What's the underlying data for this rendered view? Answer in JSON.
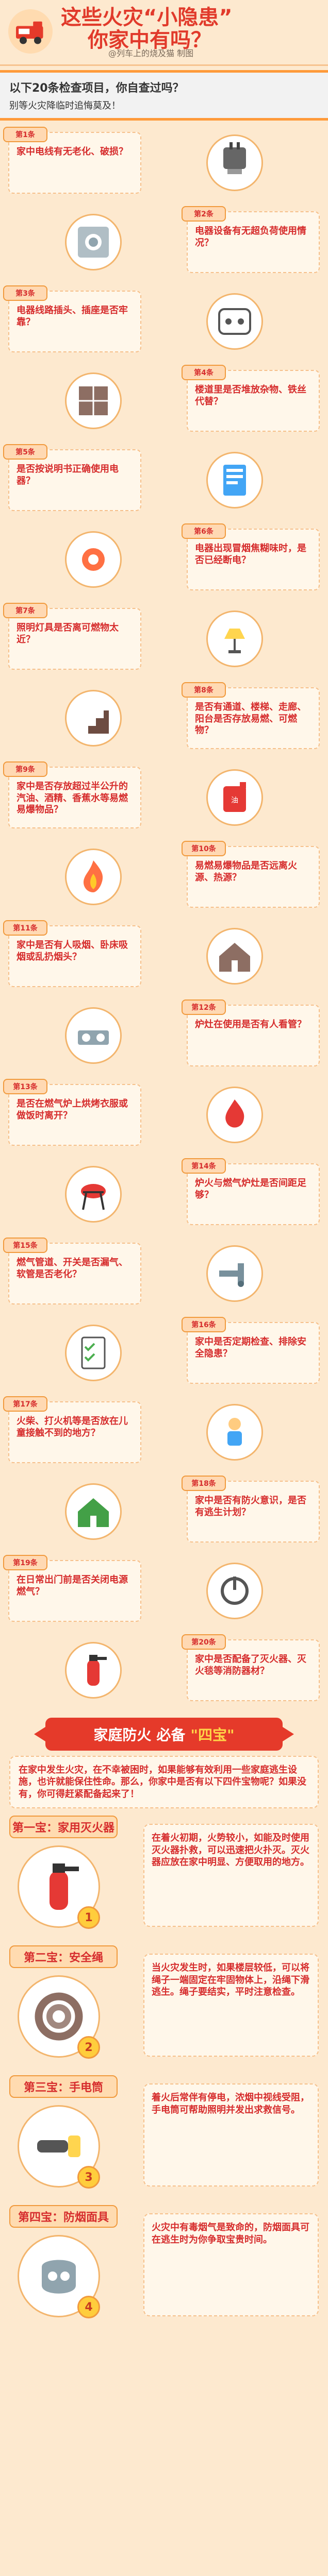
{
  "header": {
    "title_line1": "这些火灾“小隐患”",
    "title_line2": "你家中有吗？",
    "credit": "@列车上的烧及猫 制图"
  },
  "intro": {
    "line1": "以下20条检查项目，你自查过吗？",
    "line2": "别等火灾降临时追悔莫及！"
  },
  "items": [
    {
      "badge": "第1条",
      "text": "家中电线有无老化、破损？",
      "icon_name": "plug-icon"
    },
    {
      "badge": "第2条",
      "text": "电器设备有无超负荷使用情况？",
      "icon_name": "appliance-icon"
    },
    {
      "badge": "第3条",
      "text": "电器线路插头、插座是否牢靠？",
      "icon_name": "socket-icon"
    },
    {
      "badge": "第4条",
      "text": "楼道里是否堆放杂物、铁丝代替？",
      "icon_name": "storage-icon"
    },
    {
      "badge": "第5条",
      "text": "是否按说明书正确使用电器？",
      "icon_name": "manual-icon"
    },
    {
      "badge": "第6条",
      "text": "电器出现冒烟焦糊味时，是否已经断电？",
      "icon_name": "gear-icon"
    },
    {
      "badge": "第7条",
      "text": "照明灯具是否离可燃物太近？",
      "icon_name": "lamp-icon"
    },
    {
      "badge": "第8条",
      "text": "是否有通道、楼梯、走廊、阳台是否存放易燃、可燃物？",
      "icon_name": "stairs-icon"
    },
    {
      "badge": "第9条",
      "text": "家中是否存放超过半公升的汽油、酒精、香蕉水等易燃易爆物品？",
      "icon_name": "gas-can-icon"
    },
    {
      "badge": "第10条",
      "text": "易燃易爆物品是否远离火源、热源？",
      "icon_name": "flame-icon"
    },
    {
      "badge": "第11条",
      "text": "家中是否有人吸烟、卧床吸烟或乱扔烟头？",
      "icon_name": "house-icon"
    },
    {
      "badge": "第12条",
      "text": "炉灶在使用是否有人看管？",
      "icon_name": "stove-icon"
    },
    {
      "badge": "第13条",
      "text": "是否在燃气炉上烘烤衣服或做饭时离开？",
      "icon_name": "fire-icon"
    },
    {
      "badge": "第14条",
      "text": "炉火与燃气炉灶是否间距足够？",
      "icon_name": "grill-icon"
    },
    {
      "badge": "第15条",
      "text": "燃气管道、开关是否漏气、软管是否老化？",
      "icon_name": "pipe-icon"
    },
    {
      "badge": "第16条",
      "text": "家中是否定期检查、排除安全隐患？",
      "icon_name": "checklist-icon"
    },
    {
      "badge": "第17条",
      "text": "火柴、打火机等是否放在儿童接触不到的地方？",
      "icon_name": "child-icon"
    },
    {
      "badge": "第18条",
      "text": "家中是否有防火意识，是否有逃生计划？",
      "icon_name": "exit-house-icon"
    },
    {
      "badge": "第19条",
      "text": "在日常出门前是否关闭电源燃气？",
      "icon_name": "power-icon"
    },
    {
      "badge": "第20条",
      "text": "家中是否配备了灭火器、灭火毯等消防器材？",
      "icon_name": "extinguisher-icon"
    }
  ],
  "section": {
    "banner_left": "家庭防火",
    "banner_right": "\"四宝\"",
    "banner_mid": "必备"
  },
  "treasure_intro": "在家中发生火灾，在不幸被困时，如果能够有效利用一些家庭逃生设施，也许就能保住性命。那么，你家中是否有以下四件宝物呢？如果没有，你可得赶紧配备起来了！",
  "treasures": [
    {
      "label": "第一宝：家用灭火器",
      "text": "在着火初期，火势较小，如能及时使用灭火器扑救，可以迅速把火扑灭。灭火器应放在家中明显、方便取用的地方。",
      "num": "1",
      "icon_name": "extinguisher-icon"
    },
    {
      "label": "第二宝：安全绳",
      "text": "当火灾发生时，如果楼层较低，可以将绳子一端固定在牢固物体上，沿绳下滑逃生。绳子要结实，平时注意检查。",
      "num": "2",
      "icon_name": "rope-icon"
    },
    {
      "label": "第三宝：手电筒",
      "text": "着火后常伴有停电，浓烟中视线受阻，手电筒可帮助照明并发出求救信号。",
      "num": "3",
      "icon_name": "flashlight-icon"
    },
    {
      "label": "第四宝：防烟面具",
      "text": "火灾中有毒烟气是致命的，防烟面具可在逃生时为你争取宝贵时间。",
      "num": "4",
      "icon_name": "mask-icon"
    }
  ],
  "colors": {
    "accent": "#e53a2a",
    "bg": "#fde9cf"
  }
}
